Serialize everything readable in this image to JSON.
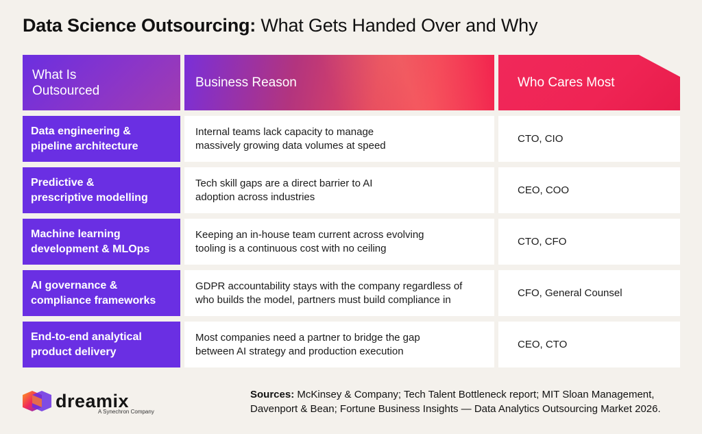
{
  "title": {
    "bold": "Data Science Outsourcing:",
    "rest": " What Gets Handed Over and Why"
  },
  "table": {
    "headers": [
      "What Is Outsourced",
      "Business Reason",
      "Who Cares Most"
    ],
    "rows": [
      {
        "what": "Data engineering & pipeline architecture",
        "reason": "Internal teams lack capacity to manage massively growing data volumes at speed",
        "who": "CTO, CIO"
      },
      {
        "what": "Predictive & prescriptive modelling",
        "reason": "Tech skill gaps are a direct barrier to AI adoption across industries",
        "who": "CEO, COO"
      },
      {
        "what": "Machine learning development & MLOps",
        "reason": "Keeping an in-house team current across evolving tooling is a continuous cost with no ceiling",
        "who": "CTO, CFO"
      },
      {
        "what": "AI governance & compliance frameworks",
        "reason": "GDPR accountability stays with the company regardless of who builds the model, partners must build compliance in",
        "who": "CFO, General Counsel"
      },
      {
        "what": "End-to-end analytical product delivery",
        "reason": "Most companies need a partner to bridge the gap between AI strategy and production execution",
        "who": "CEO, CTO"
      }
    ]
  },
  "logo": {
    "wordmark": "dreamix",
    "tagline": "A Synechron Company",
    "icon": "dreamix-logo-icon"
  },
  "sources": {
    "label": "Sources:",
    "text": " McKinsey & Company; Tech Talent Bottleneck report; MIT Sloan Management, Davenport & Bean; Fortune Business Insights — Data Analytics Outsourcing Market 2026."
  },
  "colors": {
    "background": "#f4f1ec",
    "purple": "#6a2fe3",
    "red": "#f0285a"
  }
}
